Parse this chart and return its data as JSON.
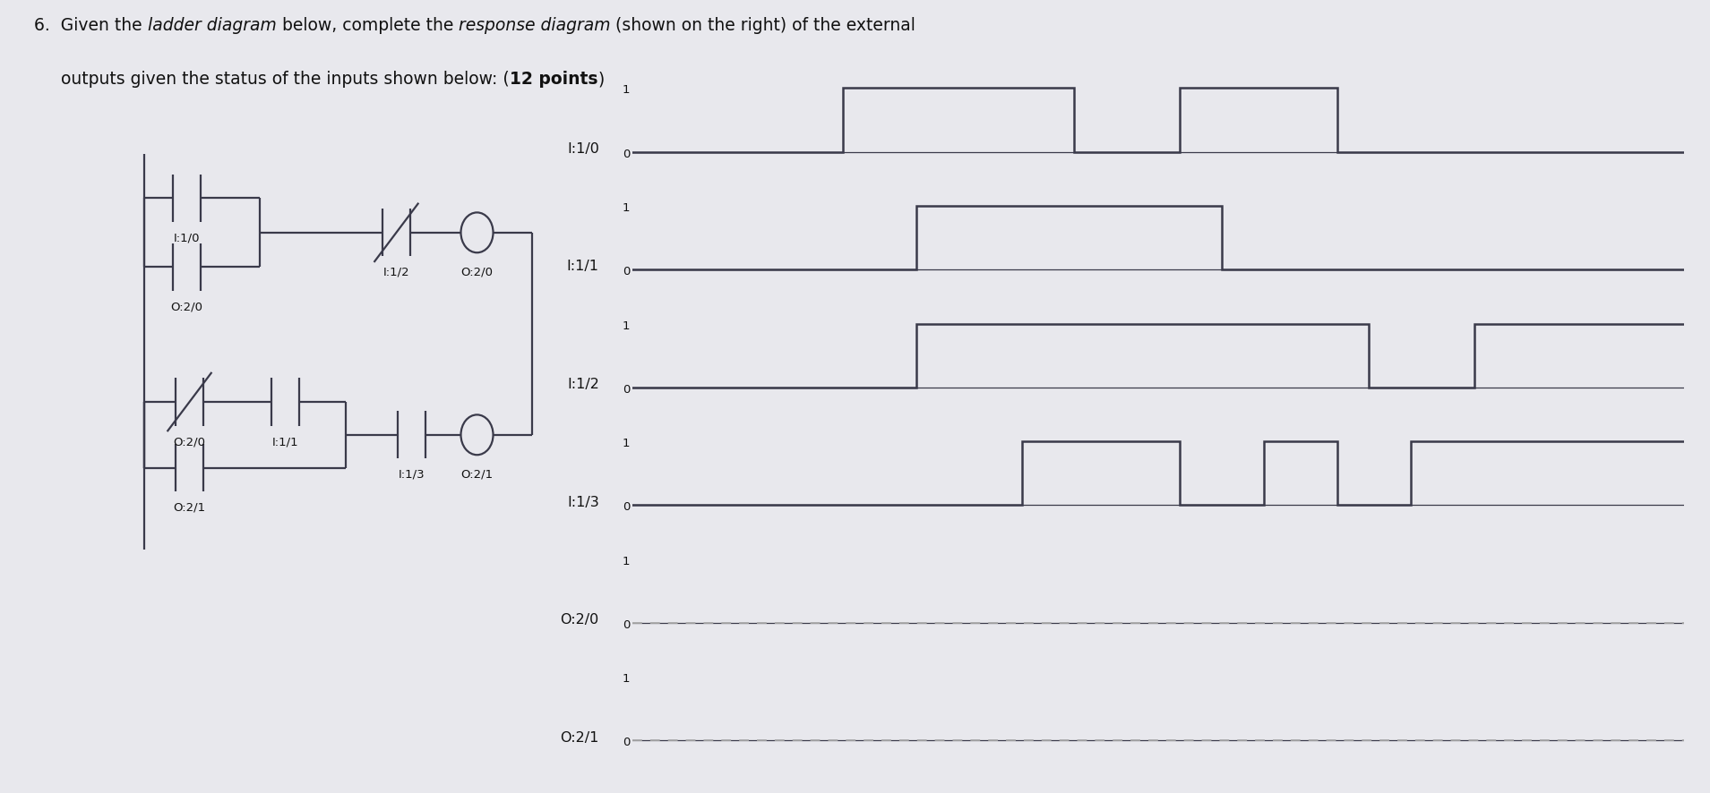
{
  "bg_color": "#e8e8ed",
  "line_color": "#3a3a4a",
  "dashed_color": "#aaaaaa",
  "label_fontsize": 11.5,
  "tick_fontsize": 9.5,
  "signals": [
    "I:1/0",
    "I:1/1",
    "I:1/2",
    "I:1/3",
    "O:2/0",
    "O:2/1"
  ],
  "waveforms": {
    "I:1/0": {
      "t": [
        0,
        0.2,
        0.2,
        0.42,
        0.42,
        0.52,
        0.52,
        0.67,
        0.67,
        1.0
      ],
      "v": [
        0,
        0,
        1,
        1,
        0,
        0,
        1,
        1,
        0,
        0
      ],
      "dashed": false
    },
    "I:1/1": {
      "t": [
        0,
        0.27,
        0.27,
        0.56,
        0.56,
        1.0
      ],
      "v": [
        0,
        0,
        1,
        1,
        0,
        0
      ],
      "dashed": false
    },
    "I:1/2": {
      "t": [
        0,
        0.27,
        0.27,
        0.7,
        0.7,
        0.8,
        0.8,
        1.0
      ],
      "v": [
        0,
        0,
        1,
        1,
        0,
        0,
        1,
        1
      ],
      "dashed": false
    },
    "I:1/3": {
      "t": [
        0,
        0.37,
        0.37,
        0.52,
        0.52,
        0.6,
        0.6,
        0.67,
        0.67,
        0.74,
        0.74,
        1.0
      ],
      "v": [
        0,
        0,
        1,
        1,
        0,
        0,
        1,
        1,
        0,
        0,
        1,
        1
      ],
      "dashed": false
    },
    "O:2/0": {
      "t": [
        0,
        1.0
      ],
      "v": [
        0,
        0
      ],
      "dashed": true
    },
    "O:2/1": {
      "t": [
        0,
        1.0
      ],
      "v": [
        0,
        0
      ],
      "dashed": true
    }
  },
  "title_line1_segments": [
    [
      "6.  Given the ",
      "normal",
      "normal"
    ],
    [
      "ladder diagram",
      "italic",
      "normal"
    ],
    [
      " below, complete the ",
      "normal",
      "normal"
    ],
    [
      "response diagram",
      "italic",
      "normal"
    ],
    [
      " (shown on the right) of the external",
      "normal",
      "normal"
    ]
  ],
  "title_line2_segments": [
    [
      "     outputs given the status of the inputs shown below: (",
      "normal",
      "normal"
    ],
    [
      "12 points",
      "normal",
      "bold"
    ],
    [
      ")",
      "normal",
      "normal"
    ]
  ],
  "title_fontsize": 13.5
}
